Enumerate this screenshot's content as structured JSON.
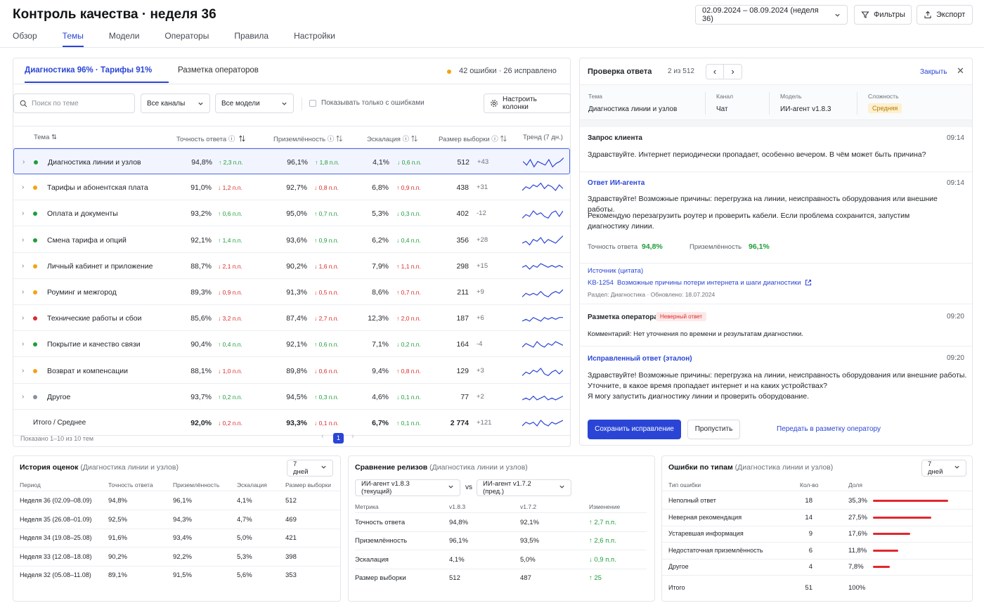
{
  "header": {
    "title": "Контроль качества · неделя 36",
    "tabs": [
      {
        "label": "Обзор",
        "active": false
      },
      {
        "label": "Темы",
        "active": true
      },
      {
        "label": "Модели",
        "active": false
      },
      {
        "label": "Операторы",
        "active": false
      },
      {
        "label": "Правила",
        "active": false
      },
      {
        "label": "Настройки",
        "active": false
      }
    ],
    "date_range": "02.09.2024 – 08.09.2024 (неделя 36)",
    "filters_label": "Фильтры",
    "export_label": "Экспорт"
  },
  "topics": {
    "tab_active": "Диагностика 96% · Тарифы 91%",
    "tab_other": "Разметка операторов",
    "summary": "42 ошибки · 26 исправлено",
    "search_placeholder": "Поиск по теме",
    "channels": "Все каналы",
    "models": "Все модели",
    "only_errors": "Показывать только с ошибками",
    "columns_btn": "Настроить колонки",
    "columns": {
      "topic": "Тема",
      "accuracy": "Точность ответа",
      "grounded": "Приземлённость",
      "escalation": "Эскалация",
      "sample": "Размер выборки",
      "trend": "Тренд (7 дн.)"
    },
    "rows": [
      {
        "name": "Диагностика линии и узлов",
        "status": "green",
        "acc": "94,8%",
        "acc_d": "↑ 2,3 п.п.",
        "acc_up": true,
        "gr": "96,1%",
        "gr_d": "↑ 1,8 п.п.",
        "gr_up": true,
        "esc": "4,1%",
        "esc_d": "↓ 0,6 п.п.",
        "esc_good": true,
        "n": "512",
        "nd": "+43",
        "trend": [
          5,
          3,
          6,
          2,
          5,
          4,
          3,
          6,
          2,
          4,
          5,
          7
        ]
      },
      {
        "name": "Тарифы и абонентская плата",
        "status": "orange",
        "acc": "91,0%",
        "acc_d": "↓ 1,2 п.п.",
        "acc_up": false,
        "gr": "92,7%",
        "gr_d": "↓ 0,8 п.п.",
        "gr_up": false,
        "esc": "6,8%",
        "esc_d": "↑ 0,9 п.п.",
        "esc_good": false,
        "n": "438",
        "nd": "+31",
        "trend": [
          3,
          5,
          4,
          6,
          5,
          7,
          4,
          6,
          5,
          3,
          6,
          4
        ]
      },
      {
        "name": "Оплата и документы",
        "status": "green",
        "acc": "93,2%",
        "acc_d": "↑ 0,6 п.п.",
        "acc_up": true,
        "gr": "95,0%",
        "gr_d": "↑ 0,7 п.п.",
        "gr_up": true,
        "esc": "5,3%",
        "esc_d": "↓ 0,3 п.п.",
        "esc_good": true,
        "n": "402",
        "nd": "-12",
        "trend": [
          2,
          4,
          3,
          6,
          4,
          5,
          3,
          2,
          5,
          6,
          3,
          6
        ]
      },
      {
        "name": "Смена тарифа и опций",
        "status": "green",
        "acc": "92,1%",
        "acc_d": "↑ 1,4 п.п.",
        "acc_up": true,
        "gr": "93,6%",
        "gr_d": "↑ 0,9 п.п.",
        "gr_up": true,
        "esc": "6,2%",
        "esc_d": "↓ 0,4 п.п.",
        "esc_good": true,
        "n": "356",
        "nd": "+28",
        "trend": [
          3,
          4,
          2,
          5,
          4,
          6,
          3,
          5,
          4,
          3,
          5,
          7
        ]
      },
      {
        "name": "Личный кабинет и приложение",
        "status": "orange",
        "acc": "88,7%",
        "acc_d": "↓ 2,1 п.п.",
        "acc_up": false,
        "gr": "90,2%",
        "gr_d": "↓ 1,6 п.п.",
        "gr_up": false,
        "esc": "7,9%",
        "esc_d": "↑ 1,1 п.п.",
        "esc_good": false,
        "n": "298",
        "nd": "+15",
        "trend": [
          4,
          5,
          3,
          5,
          4,
          6,
          5,
          4,
          5,
          4,
          5,
          4
        ]
      },
      {
        "name": "Роуминг и межгород",
        "status": "orange",
        "acc": "89,3%",
        "acc_d": "↓ 0,9 п.п.",
        "acc_up": false,
        "gr": "91,3%",
        "gr_d": "↓ 0,5 п.п.",
        "gr_up": false,
        "esc": "8,6%",
        "esc_d": "↑ 0,7 п.п.",
        "esc_good": false,
        "n": "211",
        "nd": "+9",
        "trend": [
          2,
          4,
          3,
          4,
          3,
          5,
          3,
          2,
          4,
          5,
          4,
          6
        ]
      },
      {
        "name": "Технические работы и сбои",
        "status": "red",
        "acc": "85,6%",
        "acc_d": "↓ 3,2 п.п.",
        "acc_up": false,
        "gr": "87,4%",
        "gr_d": "↓ 2,7 п.п.",
        "gr_up": false,
        "esc": "12,3%",
        "esc_d": "↑ 2,0 п.п.",
        "esc_good": false,
        "n": "187",
        "nd": "+6",
        "trend": [
          3,
          4,
          3,
          5,
          4,
          3,
          5,
          4,
          5,
          4,
          5,
          5
        ]
      },
      {
        "name": "Покрытие и качество связи",
        "status": "green",
        "acc": "90,4%",
        "acc_d": "↑ 0,4 п.п.",
        "acc_up": true,
        "gr": "92,1%",
        "gr_d": "↑ 0,6 п.п.",
        "gr_up": true,
        "esc": "7,1%",
        "esc_d": "↓ 0,2 п.п.",
        "esc_good": true,
        "n": "164",
        "nd": "-4",
        "trend": [
          3,
          5,
          4,
          3,
          6,
          4,
          3,
          5,
          4,
          6,
          5,
          4
        ]
      },
      {
        "name": "Возврат и компенсации",
        "status": "orange",
        "acc": "88,1%",
        "acc_d": "↓ 1,0 п.п.",
        "acc_up": false,
        "gr": "89,8%",
        "gr_d": "↓ 0,6 п.п.",
        "gr_up": false,
        "esc": "9,4%",
        "esc_d": "↑ 0,8 п.п.",
        "esc_good": false,
        "n": "129",
        "nd": "+3",
        "trend": [
          2,
          4,
          3,
          5,
          4,
          6,
          3,
          2,
          4,
          5,
          3,
          5
        ]
      },
      {
        "name": "Другое",
        "status": "gray",
        "acc": "93,7%",
        "acc_d": "↑ 0,2 п.п.",
        "acc_up": true,
        "gr": "94,5%",
        "gr_d": "↑ 0,3 п.п.",
        "gr_up": true,
        "esc": "4,6%",
        "esc_d": "↓ 0,1 п.п.",
        "esc_good": true,
        "n": "77",
        "nd": "+2",
        "trend": [
          3,
          4,
          3,
          5,
          3,
          4,
          5,
          3,
          4,
          3,
          4,
          5
        ]
      }
    ],
    "total": {
      "name": "Итого / Среднее",
      "acc": "92,0%",
      "acc_d": "↓ 0,2 п.п.",
      "gr": "93,3%",
      "gr_d": "↓ 0,1 п.п.",
      "esc": "6,7%",
      "esc_d": "↑ 0,1 п.п.",
      "n": "2 774",
      "nd": "+121",
      "trend": [
        3,
        5,
        4,
        5,
        3,
        6,
        4,
        3,
        5,
        4,
        5,
        6
      ]
    },
    "shown": "Показано 1–10 из 10 тем",
    "page": "1"
  },
  "detail": {
    "title": "Проверка ответа",
    "counter": "2 из 512",
    "close": "Закрыть",
    "meta": [
      {
        "label": "Тема",
        "value": "Диагностика линии и узлов"
      },
      {
        "label": "Канал",
        "value": "Чат"
      },
      {
        "label": "Модель",
        "value": "ИИ-агент v1.8.3"
      },
      {
        "label": "Сложность",
        "value": "Средняя"
      }
    ],
    "request_label": "Запрос клиента",
    "request_time": "09:14",
    "request_text": "Здравствуйте. Интернет периодически пропадает, особенно вечером. В чём может быть причина?",
    "answer_label": "Ответ ИИ-агента",
    "answer_time": "09:14",
    "answer_p1": "Здравствуйте! Возможные причины: перегрузка на линии, неисправность оборудования или внешние работы.",
    "answer_p2": "Рекомендую перезагрузить роутер и проверить кабели. Если проблема сохранится, запустим диагностику линии.",
    "acc_label": "Точность ответа",
    "acc_value": "94,8%",
    "gr_label": "Приземлённость",
    "gr_value": "96,1%",
    "source_label": "Источник (цитата)",
    "source_id": "KB-1254",
    "source_title": "Возможные причины потери интернета и шаги диагностики",
    "source_meta": "Раздел: Диагностика · Обновлено: 18.07.2024",
    "markup_label": "Разметка оператора",
    "markup_badge": "Неверный ответ",
    "markup_time": "09:20",
    "comment": "Комментарий: Нет уточнения по времени и результатам диагностики.",
    "fixed_label": "Исправленный ответ (эталон)",
    "fixed_time": "09:20",
    "fixed_l1": "Здравствуйте! Возможные причины: перегрузка на линии, неисправность оборудования или внешние работы.",
    "fixed_l2": "Уточните, в какое время пропадает интернет и на каких устройствах?",
    "fixed_l3": "Я могу запустить диагностику линии и проверить оборудование.",
    "save_btn": "Сохранить исправление",
    "skip_btn": "Пропустить",
    "transfer_btn": "Передать в разметку оператору"
  },
  "history": {
    "title": "История оценок",
    "subtitle": "(Диагностика линии и узлов)",
    "period_select": "7 дней",
    "cols": [
      "Период",
      "Точность ответа",
      "Приземлённость",
      "Эскалация",
      "Размер выборки"
    ],
    "rows": [
      [
        "Неделя 36 (02.09–08.09)",
        "94,8%",
        "96,1%",
        "4,1%",
        "512"
      ],
      [
        "Неделя 35 (26.08–01.09)",
        "92,5%",
        "94,3%",
        "4,7%",
        "469"
      ],
      [
        "Неделя 34 (19.08–25.08)",
        "91,6%",
        "93,4%",
        "5,0%",
        "421"
      ],
      [
        "Неделя 33 (12.08–18.08)",
        "90,2%",
        "92,2%",
        "5,3%",
        "398"
      ],
      [
        "Неделя 32 (05.08–11.08)",
        "89,1%",
        "91,5%",
        "5,6%",
        "353"
      ]
    ]
  },
  "releases": {
    "title": "Сравнение релизов",
    "subtitle": "(Диагностика линии и узлов)",
    "left_select": "ИИ-агент v1.8.3 (текущий)",
    "vs": "vs",
    "right_select": "ИИ-агент v1.7.2 (пред.)",
    "cols": [
      "Метрика",
      "v1.8.3",
      "v1.7.2",
      "Изменение"
    ],
    "rows": [
      [
        "Точность ответа",
        "94,8%",
        "92,1%",
        "↑ 2,7 п.п."
      ],
      [
        "Приземлённость",
        "96,1%",
        "93,5%",
        "↑ 2,6 п.п."
      ],
      [
        "Эскалация",
        "4,1%",
        "5,0%",
        "↓ 0,9 п.п."
      ],
      [
        "Размер выборки",
        "512",
        "487",
        "↑ 25"
      ]
    ]
  },
  "errors": {
    "title": "Ошибки по типам",
    "subtitle": "(Диагностика линии и узлов)",
    "period_select": "7 дней",
    "cols": [
      "Тип ошибки",
      "Кол-во",
      "Доля"
    ],
    "rows": [
      {
        "type": "Неполный ответ",
        "count": "18",
        "share": "35,3%",
        "frac": 0.353
      },
      {
        "type": "Неверная рекомендация",
        "count": "14",
        "share": "27,5%",
        "frac": 0.275
      },
      {
        "type": "Устаревшая информация",
        "count": "9",
        "share": "17,6%",
        "frac": 0.176
      },
      {
        "type": "Недостаточная приземлённость",
        "count": "6",
        "share": "11,8%",
        "frac": 0.118
      },
      {
        "type": "Другое",
        "count": "4",
        "share": "7,8%",
        "frac": 0.078
      }
    ],
    "total_label": "Итого",
    "total_count": "51",
    "total_share": "100%"
  },
  "colors": {
    "accent": "#2a45d6",
    "green": "#1f9d3a",
    "red": "#d92b2b",
    "orange": "#f2a313",
    "gray": "#8a9099",
    "bar": "#e0282e"
  }
}
